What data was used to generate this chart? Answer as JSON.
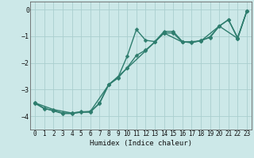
{
  "xlabel": "Humidex (Indice chaleur)",
  "bg_color": "#cce8e8",
  "line_color": "#2e7d6e",
  "marker": "D",
  "markersize": 2.5,
  "linewidth": 1.0,
  "xlim": [
    -0.5,
    23.5
  ],
  "ylim": [
    -4.5,
    0.3
  ],
  "yticks": [
    0,
    -1,
    -2,
    -3,
    -4
  ],
  "xticks": [
    0,
    1,
    2,
    3,
    4,
    5,
    6,
    7,
    8,
    9,
    10,
    11,
    12,
    13,
    14,
    15,
    16,
    17,
    18,
    19,
    20,
    21,
    22,
    23
  ],
  "grid_color": "#aacece",
  "series1_x": [
    0,
    1,
    2,
    3,
    4,
    5,
    6,
    7,
    8,
    9,
    10,
    11,
    12,
    13,
    14,
    15,
    16,
    17,
    18,
    19,
    20,
    21,
    22,
    23
  ],
  "series1_y": [
    -3.5,
    -3.7,
    -3.8,
    -3.9,
    -3.9,
    -3.85,
    -3.85,
    -3.5,
    -2.8,
    -2.55,
    -1.75,
    -0.75,
    -1.15,
    -1.2,
    -0.82,
    -0.82,
    -1.2,
    -1.25,
    -1.15,
    -1.05,
    -0.62,
    -0.38,
    -1.05,
    -0.05
  ],
  "series2_x": [
    0,
    2,
    4,
    6,
    8,
    10,
    12,
    14,
    16,
    18,
    20,
    22,
    23
  ],
  "series2_y": [
    -3.5,
    -3.75,
    -3.88,
    -3.82,
    -2.82,
    -2.2,
    -1.55,
    -0.88,
    -1.22,
    -1.18,
    -0.62,
    -1.08,
    -0.05
  ],
  "series3_x": [
    0,
    1,
    2,
    3,
    4,
    5,
    6,
    7,
    8,
    9,
    10,
    11,
    12,
    13,
    14,
    15,
    16,
    17,
    18,
    19,
    20,
    21,
    22,
    23
  ],
  "series3_y": [
    -3.52,
    -3.72,
    -3.78,
    -3.88,
    -3.88,
    -3.83,
    -3.83,
    -3.52,
    -2.82,
    -2.57,
    -2.18,
    -1.72,
    -1.52,
    -1.22,
    -0.88,
    -0.88,
    -1.22,
    -1.22,
    -1.18,
    -1.02,
    -0.62,
    -0.38,
    -1.08,
    -0.05
  ]
}
